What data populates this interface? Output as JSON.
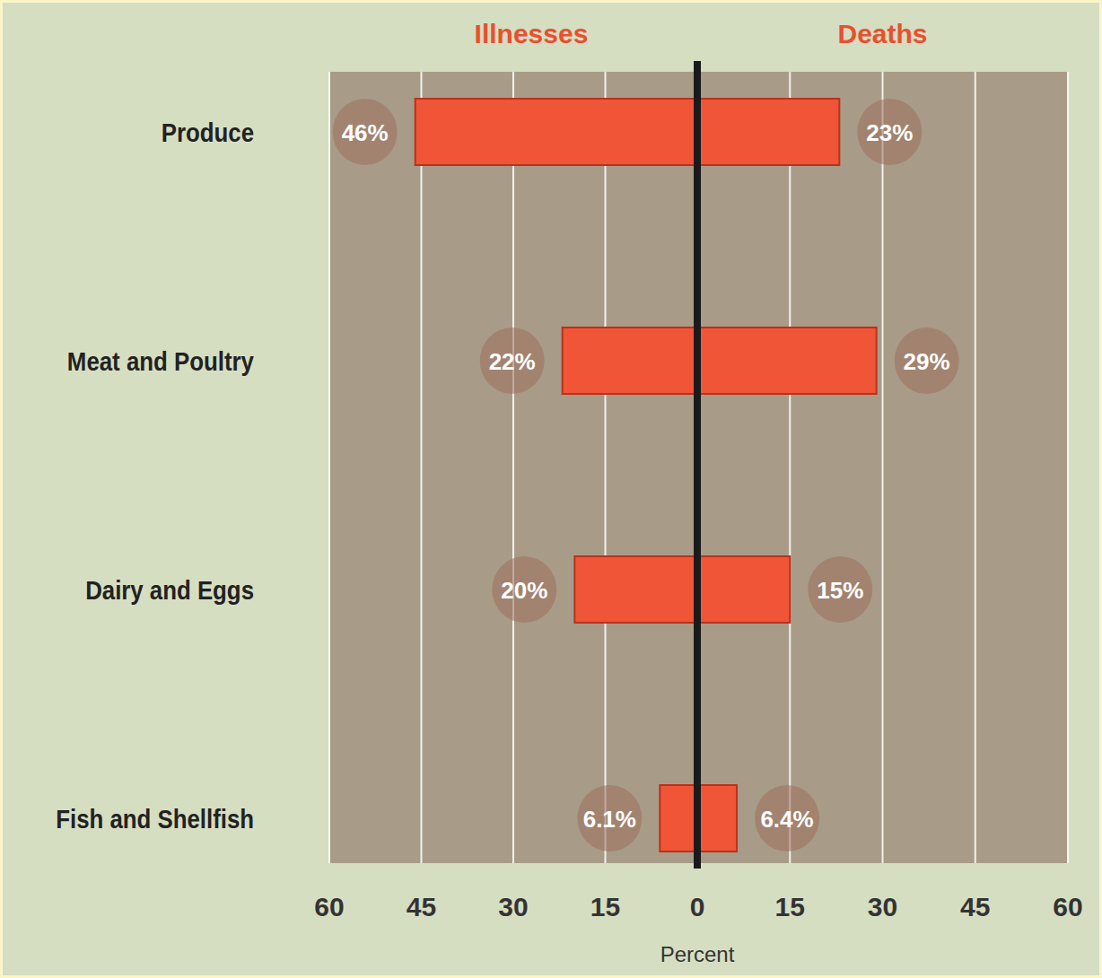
{
  "chart_data": [
    {
      "type": "bar",
      "orientation": "horizontal",
      "title": "Illnesses",
      "categories": [
        "Produce",
        "Meat and Poultry",
        "Dairy and Eggs",
        "Fish and Shellfish"
      ],
      "values": [
        46,
        22,
        20,
        6.1
      ],
      "value_labels": [
        "46%",
        "22%",
        "20%",
        "6.1%"
      ],
      "data_labels": true,
      "color": "#f05537",
      "xlim": [
        60,
        0
      ],
      "xticks": [
        60,
        45,
        30,
        15,
        0
      ],
      "x_label": "Percent",
      "grid": true
    },
    {
      "type": "bar",
      "orientation": "horizontal",
      "title": "Deaths",
      "categories": [
        null,
        null,
        null,
        null
      ],
      "values": [
        23,
        29,
        15,
        6.4
      ],
      "value_labels": [
        "23%",
        "29%",
        "15%",
        "6.4%"
      ],
      "data_labels": true,
      "color": "#f05537",
      "xlim": [
        0,
        60
      ],
      "xticks": [
        15,
        30,
        45,
        60
      ],
      "grid": true
    }
  ]
}
